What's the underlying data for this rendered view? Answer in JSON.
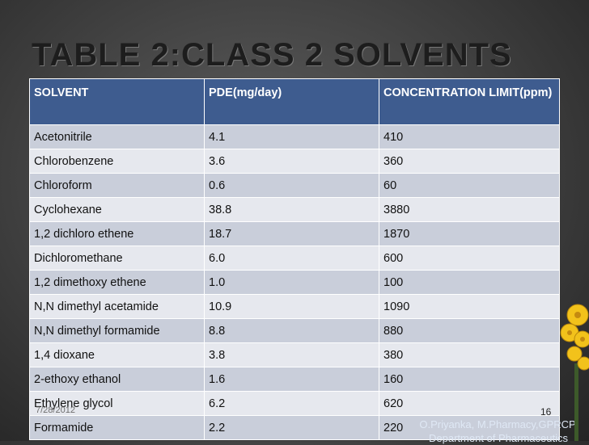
{
  "slide": {
    "title": "TABLE 2:CLASS 2 SOLVENTS",
    "date": "7/28/2012",
    "page_number": "16",
    "author_line1": "O.Priyanka, M.Pharmacy,GPRCP,",
    "author_line2": "Department of Pharmaceutics"
  },
  "table": {
    "headers": [
      "SOLVENT",
      "PDE(mg/day)",
      "CONCENTRATION LIMIT(ppm)"
    ],
    "rows": [
      [
        "Acetonitrile",
        "4.1",
        "410"
      ],
      [
        "Chlorobenzene",
        "3.6",
        "360"
      ],
      [
        "Chloroform",
        "0.6",
        "60"
      ],
      [
        "Cyclohexane",
        "38.8",
        "3880"
      ],
      [
        "1,2 dichloro ethene",
        "18.7",
        "1870"
      ],
      [
        "Dichloromethane",
        "6.0",
        "600"
      ],
      [
        "1,2 dimethoxy ethene",
        "1.0",
        "100"
      ],
      [
        "N,N dimethyl acetamide",
        "10.9",
        "1090"
      ],
      [
        "N,N dimethyl formamide",
        "8.8",
        "880"
      ],
      [
        "1,4 dioxane",
        "3.8",
        "380"
      ],
      [
        "2-ethoxy ethanol",
        "1.6",
        "160"
      ],
      [
        "Ethylene glycol",
        "6.2",
        "620"
      ],
      [
        "Formamide",
        "2.2",
        "220"
      ]
    ]
  },
  "colors": {
    "header_bg": "#3e5c8f",
    "row_odd": "#c9ceda",
    "row_even": "#e6e8ee",
    "decoration": "yellow-flowers"
  }
}
